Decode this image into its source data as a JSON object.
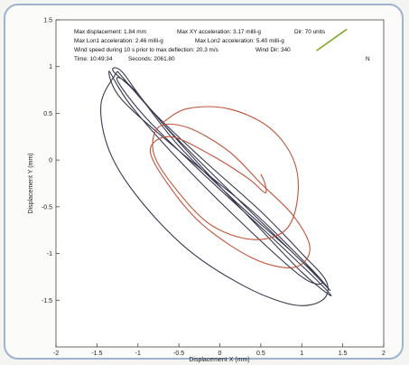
{
  "chart_data": {
    "type": "line",
    "xlabel": "Displacement X (mm)",
    "ylabel": "Displacement Y (mm)",
    "xlim": [
      -2,
      2
    ],
    "ylim": [
      -2,
      1.5
    ],
    "xticks": [
      "-2",
      "-1.5",
      "-1",
      "-0.5",
      "0",
      "0.5",
      "1",
      "1.5",
      "2"
    ],
    "yticks": [
      "1.5",
      "1",
      "0.5",
      "0",
      "-0.5",
      "-1",
      "-1.5"
    ],
    "grid": false,
    "annotations": {
      "line1a": "Max displacement: 1.84 mm",
      "line1b": "Max XY acceleration: 3.17 milli-g",
      "line1c": "Dir: 70 units",
      "line2a": "Max Lon1 acceleration: 2.46 milli-g",
      "line2b": "Max Lon2 acceleration: 5.40 milli-g",
      "line3": "Wind speed during 10 s prior to max deflection: 20.3 m/s",
      "line3b": "Wind Dir: 340",
      "line4a": "Time: 10:49:34",
      "line4b": "Seconds: 2061.80",
      "north": "N"
    },
    "series": [
      {
        "color": "#3a3a52",
        "x": [
          1.35,
          0.9,
          0.2,
          -0.5,
          -1.0,
          -1.3,
          -1.2,
          -0.9,
          -0.3,
          0.4,
          1.0,
          1.35,
          1.2,
          0.6,
          -0.2,
          -0.9,
          -1.25,
          -1.1,
          -0.6,
          0.2,
          0.9,
          1.25,
          1.0,
          0.3,
          -0.5,
          -1.1,
          -1.35,
          -1.2,
          -0.5,
          0.4,
          1.1,
          1.35
        ],
        "y": [
          -1.4,
          -1.0,
          -0.45,
          0.15,
          0.7,
          0.95,
          0.95,
          0.6,
          0.0,
          -0.65,
          -1.2,
          -1.45,
          -1.3,
          -0.8,
          -0.15,
          0.45,
          0.85,
          0.8,
          0.3,
          -0.4,
          -1.0,
          -1.3,
          -1.25,
          -0.7,
          0.0,
          0.6,
          0.95,
          0.65,
          0.1,
          -0.55,
          -1.15,
          -1.4
        ]
      },
      {
        "color": "#3a3a52",
        "x": [
          -1.25,
          -1.45,
          -1.35,
          -1.0,
          -0.4,
          0.3,
          0.9,
          1.25,
          1.3,
          1.0,
          0.5,
          -0.2,
          -0.8,
          -1.25
        ],
        "y": [
          0.95,
          0.6,
          0.1,
          -0.4,
          -0.95,
          -1.35,
          -1.55,
          -1.5,
          -1.3,
          -1.0,
          -0.55,
          0.0,
          0.5,
          0.95
        ]
      },
      {
        "color": "#c0543a",
        "x": [
          -0.7,
          -0.4,
          0.1,
          0.6,
          0.9,
          0.95,
          0.8,
          0.4,
          -0.1,
          -0.5,
          -0.8,
          -0.75,
          -0.4,
          0.1,
          0.5,
          0.9,
          1.1,
          0.9,
          0.4,
          -0.2,
          -0.6,
          -0.85,
          -0.6,
          -0.1,
          0.35,
          0.55,
          0.55,
          0.5
        ],
        "y": [
          0.4,
          0.55,
          0.55,
          0.35,
          0.0,
          -0.4,
          -0.75,
          -0.85,
          -0.7,
          -0.35,
          0.05,
          0.35,
          0.35,
          0.1,
          -0.25,
          -0.6,
          -0.95,
          -1.15,
          -1.05,
          -0.7,
          -0.3,
          0.1,
          0.25,
          0.05,
          -0.2,
          -0.35,
          -0.25,
          -0.15
        ]
      },
      {
        "color": "#7fa82a",
        "x": [
          1.18,
          1.55
        ],
        "y": [
          1.17,
          1.4
        ]
      }
    ]
  }
}
